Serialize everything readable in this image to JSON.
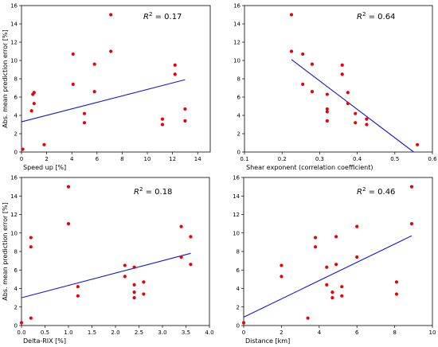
{
  "chart_data": [
    {
      "type": "scatter",
      "xlabel": "Speed up [%]",
      "ylabel": "Abs. mean prediction error [%]",
      "xlim": [
        0,
        15
      ],
      "ylim": [
        0,
        16
      ],
      "xticks": [
        "0",
        "2",
        "4",
        "6",
        "8",
        "10",
        "12",
        "14"
      ],
      "yticks": [
        "0",
        "2",
        "4",
        "6",
        "8",
        "10",
        "12",
        "14",
        "16"
      ],
      "r2_label": "0.17",
      "grid": false,
      "points": [
        [
          0.1,
          0.3
        ],
        [
          0.8,
          4.5
        ],
        [
          0.9,
          6.3
        ],
        [
          1.0,
          5.3
        ],
        [
          1.0,
          6.5
        ],
        [
          1.8,
          0.8
        ],
        [
          4.1,
          7.4
        ],
        [
          4.1,
          10.7
        ],
        [
          5.0,
          4.2
        ],
        [
          5.0,
          3.2
        ],
        [
          5.8,
          6.6
        ],
        [
          5.8,
          9.6
        ],
        [
          7.1,
          11.0
        ],
        [
          7.1,
          15.0
        ],
        [
          11.2,
          3.6
        ],
        [
          11.2,
          3.0
        ],
        [
          12.2,
          9.5
        ],
        [
          12.2,
          8.5
        ],
        [
          13.0,
          4.7
        ],
        [
          13.0,
          3.4
        ]
      ],
      "fit": [
        [
          0,
          3.3
        ],
        [
          13,
          7.9
        ]
      ],
      "colors": {
        "points": "#e8000b",
        "fit": "#1616d4"
      }
    },
    {
      "type": "scatter",
      "xlabel": "Shear exponent (correlation coefficient)",
      "ylabel": "",
      "xlim": [
        0.1,
        0.6
      ],
      "ylim": [
        0,
        16
      ],
      "xticks": [
        "0.1",
        "0.2",
        "0.3",
        "0.4",
        "0.5",
        "0.6"
      ],
      "yticks": [
        "0",
        "2",
        "4",
        "6",
        "8",
        "10",
        "12",
        "14",
        "16"
      ],
      "r2_label": "0.64",
      "grid": false,
      "points": [
        [
          0.225,
          15.0
        ],
        [
          0.225,
          11.0
        ],
        [
          0.255,
          10.7
        ],
        [
          0.255,
          7.4
        ],
        [
          0.28,
          9.6
        ],
        [
          0.28,
          6.6
        ],
        [
          0.32,
          6.3
        ],
        [
          0.32,
          4.7
        ],
        [
          0.32,
          4.4
        ],
        [
          0.32,
          3.4
        ],
        [
          0.36,
          9.5
        ],
        [
          0.36,
          8.5
        ],
        [
          0.375,
          6.5
        ],
        [
          0.375,
          5.3
        ],
        [
          0.395,
          4.2
        ],
        [
          0.395,
          3.2
        ],
        [
          0.425,
          3.6
        ],
        [
          0.425,
          3.0
        ],
        [
          0.56,
          0.8
        ]
      ],
      "fit": [
        [
          0.225,
          10.1
        ],
        [
          0.55,
          0.0
        ]
      ],
      "colors": {
        "points": "#e8000b",
        "fit": "#1616d4"
      }
    },
    {
      "type": "scatter",
      "xlabel": "Delta-RIX [%]",
      "ylabel": "Abs. mean prediction error [%]",
      "xlim": [
        0,
        4
      ],
      "ylim": [
        0,
        16
      ],
      "xticks": [
        "0.0",
        "0.5",
        "1.0",
        "1.5",
        "2.0",
        "2.5",
        "3.0",
        "3.5",
        "4.0"
      ],
      "yticks": [
        "0",
        "2",
        "4",
        "6",
        "8",
        "10",
        "12",
        "14",
        "16"
      ],
      "r2_label": "0.18",
      "grid": false,
      "points": [
        [
          0.0,
          0.3
        ],
        [
          0.2,
          9.5
        ],
        [
          0.2,
          8.5
        ],
        [
          0.2,
          0.8
        ],
        [
          1.0,
          15.0
        ],
        [
          1.0,
          11.0
        ],
        [
          1.2,
          4.2
        ],
        [
          1.2,
          3.2
        ],
        [
          2.2,
          6.5
        ],
        [
          2.2,
          5.3
        ],
        [
          2.4,
          6.3
        ],
        [
          2.4,
          4.4
        ],
        [
          2.4,
          3.6
        ],
        [
          2.4,
          3.0
        ],
        [
          2.6,
          4.7
        ],
        [
          2.6,
          3.4
        ],
        [
          3.4,
          10.7
        ],
        [
          3.4,
          7.4
        ],
        [
          3.6,
          9.6
        ],
        [
          3.6,
          6.6
        ]
      ],
      "fit": [
        [
          0,
          3.0
        ],
        [
          3.6,
          7.8
        ]
      ],
      "colors": {
        "points": "#e8000b",
        "fit": "#1616d4"
      }
    },
    {
      "type": "scatter",
      "xlabel": "Distance [km]",
      "ylabel": "",
      "xlim": [
        0,
        10
      ],
      "ylim": [
        0,
        16
      ],
      "xticks": [
        "0",
        "2",
        "4",
        "6",
        "8",
        "10"
      ],
      "yticks": [
        "0",
        "2",
        "4",
        "6",
        "8",
        "10",
        "12",
        "14",
        "16"
      ],
      "r2_label": "0.46",
      "grid": false,
      "points": [
        [
          0.0,
          0.3
        ],
        [
          2.0,
          6.5
        ],
        [
          2.0,
          5.3
        ],
        [
          3.4,
          0.8
        ],
        [
          3.8,
          9.5
        ],
        [
          3.8,
          8.5
        ],
        [
          4.4,
          6.3
        ],
        [
          4.4,
          4.4
        ],
        [
          4.7,
          3.6
        ],
        [
          4.7,
          3.0
        ],
        [
          4.9,
          9.6
        ],
        [
          4.9,
          6.6
        ],
        [
          5.2,
          4.2
        ],
        [
          5.2,
          3.2
        ],
        [
          6.0,
          10.7
        ],
        [
          6.0,
          7.4
        ],
        [
          8.1,
          4.7
        ],
        [
          8.1,
          3.4
        ],
        [
          8.9,
          15.0
        ],
        [
          8.9,
          11.0
        ]
      ],
      "fit": [
        [
          0,
          0.9
        ],
        [
          8.9,
          9.7
        ]
      ],
      "colors": {
        "points": "#e8000b",
        "fit": "#1616d4"
      }
    }
  ]
}
